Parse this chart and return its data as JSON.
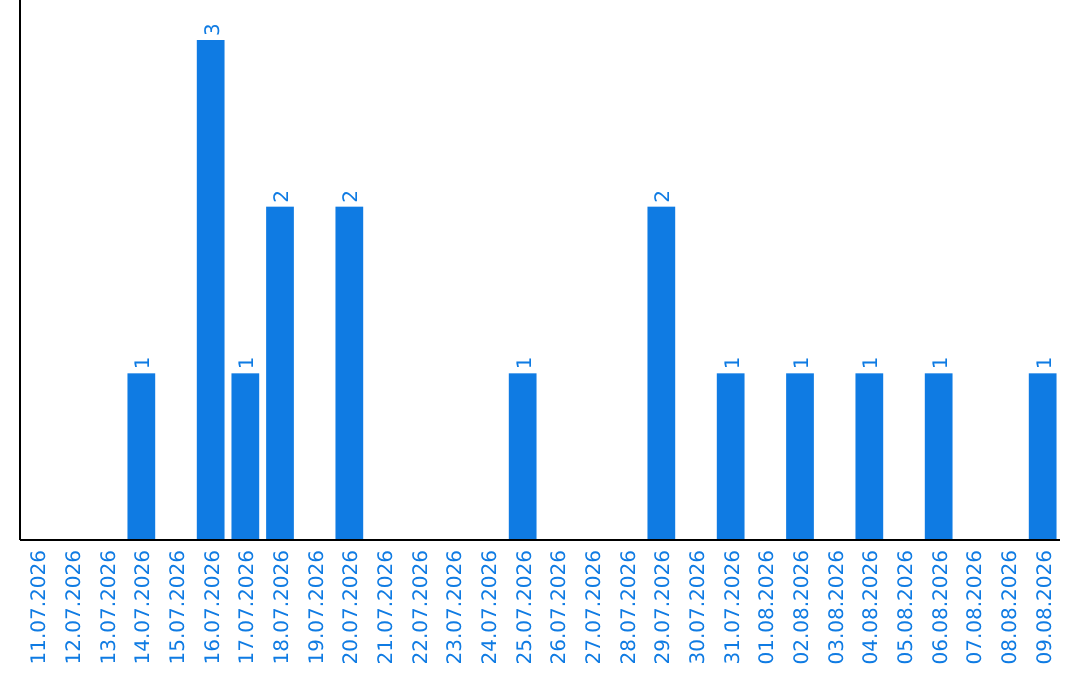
{
  "chart_data": {
    "type": "bar",
    "categories": [
      "11.07.2026",
      "12.07.2026",
      "13.07.2026",
      "14.07.2026",
      "15.07.2026",
      "16.07.2026",
      "17.07.2026",
      "18.07.2026",
      "19.07.2026",
      "20.07.2026",
      "21.07.2026",
      "22.07.2026",
      "23.07.2026",
      "24.07.2026",
      "25.07.2026",
      "26.07.2026",
      "27.07.2026",
      "28.07.2026",
      "29.07.2026",
      "30.07.2026",
      "31.07.2026",
      "01.08.2026",
      "02.08.2026",
      "03.08.2026",
      "04.08.2026",
      "05.08.2026",
      "06.08.2026",
      "07.08.2026",
      "08.08.2026",
      "09.08.2026"
    ],
    "values": [
      0,
      0,
      0,
      1,
      0,
      3,
      1,
      2,
      0,
      2,
      0,
      0,
      0,
      0,
      1,
      0,
      0,
      0,
      2,
      0,
      1,
      0,
      1,
      0,
      1,
      0,
      1,
      0,
      0,
      1
    ],
    "color": "#0f7be3",
    "value_labels": [
      null,
      null,
      null,
      "1",
      null,
      "3",
      "1",
      "2",
      null,
      "2",
      null,
      null,
      null,
      null,
      "1",
      null,
      null,
      null,
      "2",
      null,
      "1",
      null,
      "1",
      null,
      "1",
      null,
      "1",
      null,
      null,
      "1"
    ]
  }
}
